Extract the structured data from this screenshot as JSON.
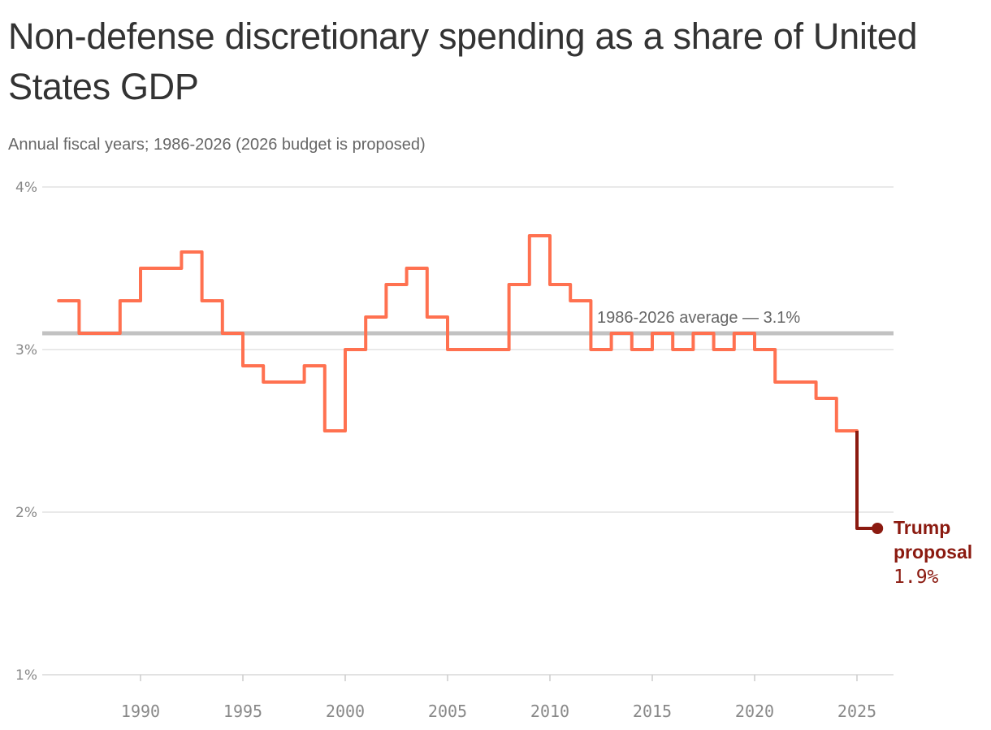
{
  "chart_data": {
    "type": "line",
    "step": true,
    "title": "Non-defense discretionary spending as a share of United States GDP",
    "subtitle": "Annual fiscal years; 1986-2026 (2026 budget is proposed)",
    "xlim": [
      1986,
      2026
    ],
    "ylim": [
      1,
      4
    ],
    "x_ticks": [
      1990,
      1995,
      2000,
      2005,
      2010,
      2015,
      2020,
      2025
    ],
    "y_ticks": [
      1,
      2,
      3,
      4
    ],
    "y_tick_labels": [
      "1%",
      "2%",
      "3%",
      "4%"
    ],
    "grid": true,
    "start_year": 1986,
    "x": [
      1987,
      1988,
      1989,
      1990,
      1991,
      1992,
      1993,
      1994,
      1995,
      1996,
      1997,
      1998,
      1999,
      2000,
      2001,
      2002,
      2003,
      2004,
      2005,
      2006,
      2007,
      2008,
      2009,
      2010,
      2011,
      2012,
      2013,
      2014,
      2015,
      2016,
      2017,
      2018,
      2019,
      2020,
      2021,
      2022,
      2023,
      2024,
      2025,
      2026
    ],
    "values": [
      3.3,
      3.1,
      3.1,
      3.3,
      3.5,
      3.5,
      3.6,
      3.3,
      3.1,
      2.9,
      2.8,
      2.8,
      2.9,
      2.5,
      3.0,
      3.2,
      3.4,
      3.5,
      3.2,
      3.0,
      3.0,
      3.0,
      3.4,
      3.7,
      3.4,
      3.3,
      3.0,
      3.1,
      3.0,
      3.1,
      3.0,
      3.1,
      3.0,
      3.1,
      3.0,
      2.8,
      2.8,
      2.7,
      2.5,
      1.9
    ],
    "average": {
      "value": 3.1,
      "label": "1986-2026 average — 3.1%"
    },
    "highlight": {
      "label_line1": "Trump",
      "label_line2": "proposal",
      "value_label": "1.9%"
    },
    "colors": {
      "line": "#ff7150",
      "highlight": "#8b1a10",
      "average": "#c2c2c2",
      "grid": "#e2e2e2"
    }
  }
}
